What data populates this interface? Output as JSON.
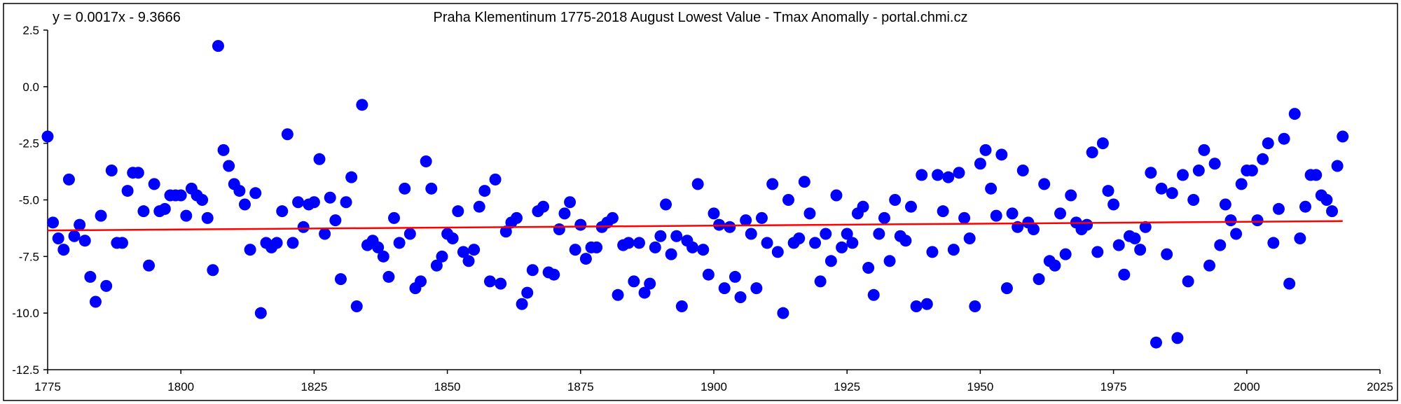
{
  "chart_data": {
    "type": "scatter",
    "title": "Praha Klementinum 1775-2018 August Lowest Value - Tmax Anomally - portal.chmi.cz",
    "equation": "y = 0.0017x - 9.3666",
    "xlabel": "",
    "ylabel": "",
    "xlim": [
      1775,
      2025
    ],
    "ylim": [
      -12.5,
      2.5
    ],
    "x_ticks": [
      1775,
      1800,
      1825,
      1850,
      1875,
      1900,
      1925,
      1950,
      1975,
      2000,
      2025
    ],
    "y_ticks": [
      2.5,
      0.0,
      -2.5,
      -5.0,
      -7.5,
      -10.0,
      -12.5
    ],
    "y_tick_labels": [
      "2.5",
      "0.0",
      "-2.5",
      "-5.0",
      "-7.5",
      "-10.0",
      "-12.5"
    ],
    "grid": false,
    "legend": "none",
    "colors": {
      "points": "#0000ff",
      "trend": "#ff0000",
      "axis": "#000000"
    },
    "trendline": {
      "slope": 0.0017,
      "intercept": -9.3666
    },
    "x": [
      1775,
      1776,
      1777,
      1778,
      1779,
      1780,
      1781,
      1782,
      1783,
      1784,
      1785,
      1786,
      1787,
      1788,
      1789,
      1790,
      1791,
      1792,
      1793,
      1794,
      1795,
      1796,
      1797,
      1798,
      1799,
      1800,
      1801,
      1802,
      1803,
      1804,
      1805,
      1806,
      1807,
      1808,
      1809,
      1810,
      1811,
      1812,
      1813,
      1814,
      1815,
      1816,
      1817,
      1818,
      1819,
      1820,
      1821,
      1822,
      1823,
      1824,
      1825,
      1826,
      1827,
      1828,
      1829,
      1830,
      1831,
      1832,
      1833,
      1834,
      1835,
      1836,
      1837,
      1838,
      1839,
      1840,
      1841,
      1842,
      1843,
      1844,
      1845,
      1846,
      1847,
      1848,
      1849,
      1850,
      1851,
      1852,
      1853,
      1854,
      1855,
      1856,
      1857,
      1858,
      1859,
      1860,
      1861,
      1862,
      1863,
      1864,
      1865,
      1866,
      1867,
      1868,
      1869,
      1870,
      1871,
      1872,
      1873,
      1874,
      1875,
      1876,
      1877,
      1878,
      1879,
      1880,
      1881,
      1882,
      1883,
      1884,
      1885,
      1886,
      1887,
      1888,
      1889,
      1890,
      1891,
      1892,
      1893,
      1894,
      1895,
      1896,
      1897,
      1898,
      1899,
      1900,
      1901,
      1902,
      1903,
      1904,
      1905,
      1906,
      1907,
      1908,
      1909,
      1910,
      1911,
      1912,
      1913,
      1914,
      1915,
      1916,
      1917,
      1918,
      1919,
      1920,
      1921,
      1922,
      1923,
      1924,
      1925,
      1926,
      1927,
      1928,
      1929,
      1930,
      1931,
      1932,
      1933,
      1934,
      1935,
      1936,
      1937,
      1938,
      1939,
      1940,
      1941,
      1942,
      1943,
      1944,
      1945,
      1946,
      1947,
      1948,
      1949,
      1950,
      1951,
      1952,
      1953,
      1954,
      1955,
      1956,
      1957,
      1958,
      1959,
      1960,
      1961,
      1962,
      1963,
      1964,
      1965,
      1966,
      1967,
      1968,
      1969,
      1970,
      1971,
      1972,
      1973,
      1974,
      1975,
      1976,
      1977,
      1978,
      1979,
      1980,
      1981,
      1982,
      1983,
      1984,
      1985,
      1986,
      1987,
      1988,
      1989,
      1990,
      1991,
      1992,
      1993,
      1994,
      1995,
      1996,
      1997,
      1998,
      1999,
      2000,
      2001,
      2002,
      2003,
      2004,
      2005,
      2006,
      2007,
      2008,
      2009,
      2010,
      2011,
      2012,
      2013,
      2014,
      2015,
      2016,
      2017,
      2018
    ],
    "y": [
      -2.2,
      -6.0,
      -6.7,
      -7.2,
      -4.1,
      -6.6,
      -6.1,
      -6.8,
      -8.4,
      -9.5,
      -5.7,
      -8.8,
      -3.7,
      -6.9,
      -6.9,
      -4.6,
      -3.8,
      -3.8,
      -5.5,
      -7.9,
      -4.3,
      -5.5,
      -5.4,
      -4.8,
      -4.8,
      -4.8,
      -5.7,
      -4.5,
      -4.8,
      -5.0,
      -5.8,
      -8.1,
      1.8,
      -2.8,
      -3.5,
      -4.3,
      -4.6,
      -5.2,
      -7.2,
      -4.7,
      -10.0,
      -6.9,
      -7.1,
      -6.9,
      -5.5,
      -2.1,
      -6.9,
      -5.1,
      -6.2,
      -5.2,
      -5.1,
      -3.2,
      -6.5,
      -4.9,
      -5.9,
      -8.5,
      -5.1,
      -4.0,
      -9.7,
      -0.8,
      -7.0,
      -6.8,
      -7.1,
      -7.5,
      -8.4,
      -5.8,
      -6.9,
      -4.5,
      -6.5,
      -8.9,
      -8.6,
      -3.3,
      -4.5,
      -7.9,
      -7.5,
      -6.5,
      -6.7,
      -5.5,
      -7.3,
      -7.7,
      -7.2,
      -5.3,
      -4.6,
      -8.6,
      -4.1,
      -8.7,
      -6.4,
      -6.0,
      -5.8,
      -9.6,
      -9.1,
      -8.1,
      -5.5,
      -5.3,
      -8.2,
      -8.3,
      -6.3,
      -5.6,
      -5.1,
      -7.2,
      -6.1,
      -7.6,
      -7.1,
      -7.1,
      -6.2,
      -6.0,
      -5.8,
      -9.2,
      -7.0,
      -6.9,
      -8.6,
      -6.9,
      -9.1,
      -8.7,
      -7.1,
      -6.6,
      -5.2,
      -7.4,
      -6.6,
      -9.7,
      -6.8,
      -7.1,
      -4.3,
      -7.2,
      -8.3,
      -5.6,
      -6.1,
      -8.9,
      -6.2,
      -8.4,
      -9.3,
      -5.9,
      -6.5,
      -8.9,
      -5.8,
      -6.9,
      -4.3,
      -7.3,
      -10.0,
      -5.0,
      -6.9,
      -6.7,
      -4.2,
      -5.6,
      -6.9,
      -8.6,
      -6.5,
      -7.7,
      -4.8,
      -7.1,
      -6.5,
      -6.9,
      -5.6,
      -5.3,
      -8.0,
      -9.2,
      -6.5,
      -5.8,
      -7.7,
      -5.0,
      -6.6,
      -6.8,
      -5.3,
      -9.7,
      -3.9,
      -9.6,
      -7.3,
      -3.9,
      -5.5,
      -4.0,
      -7.2,
      -3.8,
      -5.8,
      -6.7,
      -9.7,
      -3.4,
      -2.8,
      -4.5,
      -5.7,
      -3.0,
      -8.9,
      -5.6,
      -6.2,
      -3.7,
      -6.0,
      -6.3,
      -8.5,
      -4.3,
      -7.7,
      -7.9,
      -5.6,
      -7.4,
      -4.8,
      -6.0,
      -6.3,
      -6.1,
      -2.9,
      -7.3,
      -2.5,
      -4.6,
      -5.2,
      -7.0,
      -8.3,
      -6.6,
      -6.7,
      -7.2,
      -6.2,
      -3.8,
      -11.3,
      -4.5,
      -7.4,
      -4.7,
      -11.1,
      -3.9,
      -8.6,
      -5.0,
      -3.7,
      -2.8,
      -7.9,
      -3.4,
      -7.0,
      -5.2,
      -5.9,
      -6.5,
      -4.3,
      -3.7,
      -3.7,
      -5.9,
      -3.2,
      -2.5,
      -6.9,
      -5.4,
      -2.3,
      -8.7,
      -1.2,
      -6.7,
      -5.3,
      -3.9,
      -3.9,
      -4.8,
      -5.0,
      -5.5,
      -3.5,
      -2.2
    ]
  }
}
